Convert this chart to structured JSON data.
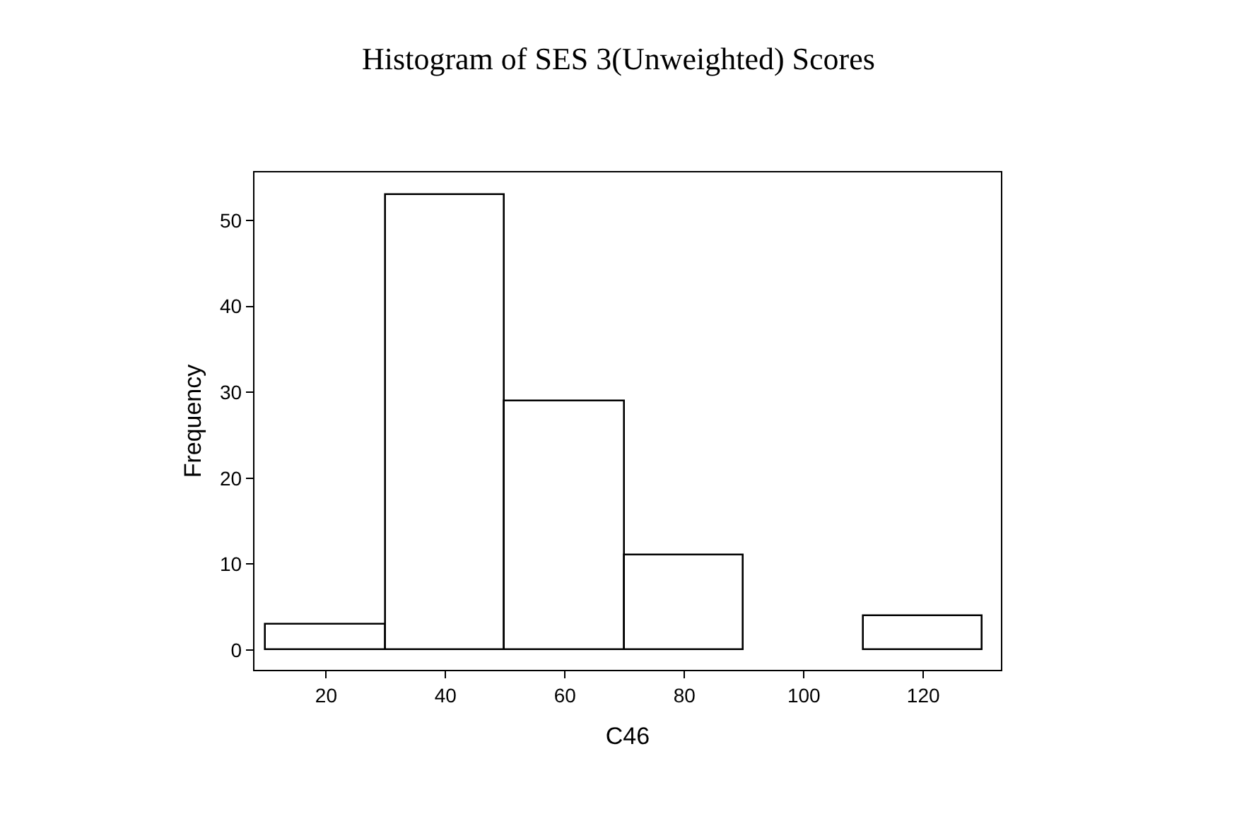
{
  "chart_data": {
    "type": "histogram",
    "title": "Histogram of SES 3(Unweighted) Scores",
    "xlabel": "C46",
    "ylabel": "Frequency",
    "bins": [
      10,
      30,
      50,
      70,
      90,
      110,
      130
    ],
    "values": [
      3,
      53,
      29,
      11,
      0,
      4
    ],
    "color": "#ffffff",
    "xlim": [
      8,
      133
    ],
    "ylim": [
      -2.3,
      55.6
    ],
    "xticks": [
      20,
      40,
      60,
      80,
      100,
      120
    ],
    "yticks": [
      0,
      10,
      20,
      30,
      40,
      50
    ]
  }
}
